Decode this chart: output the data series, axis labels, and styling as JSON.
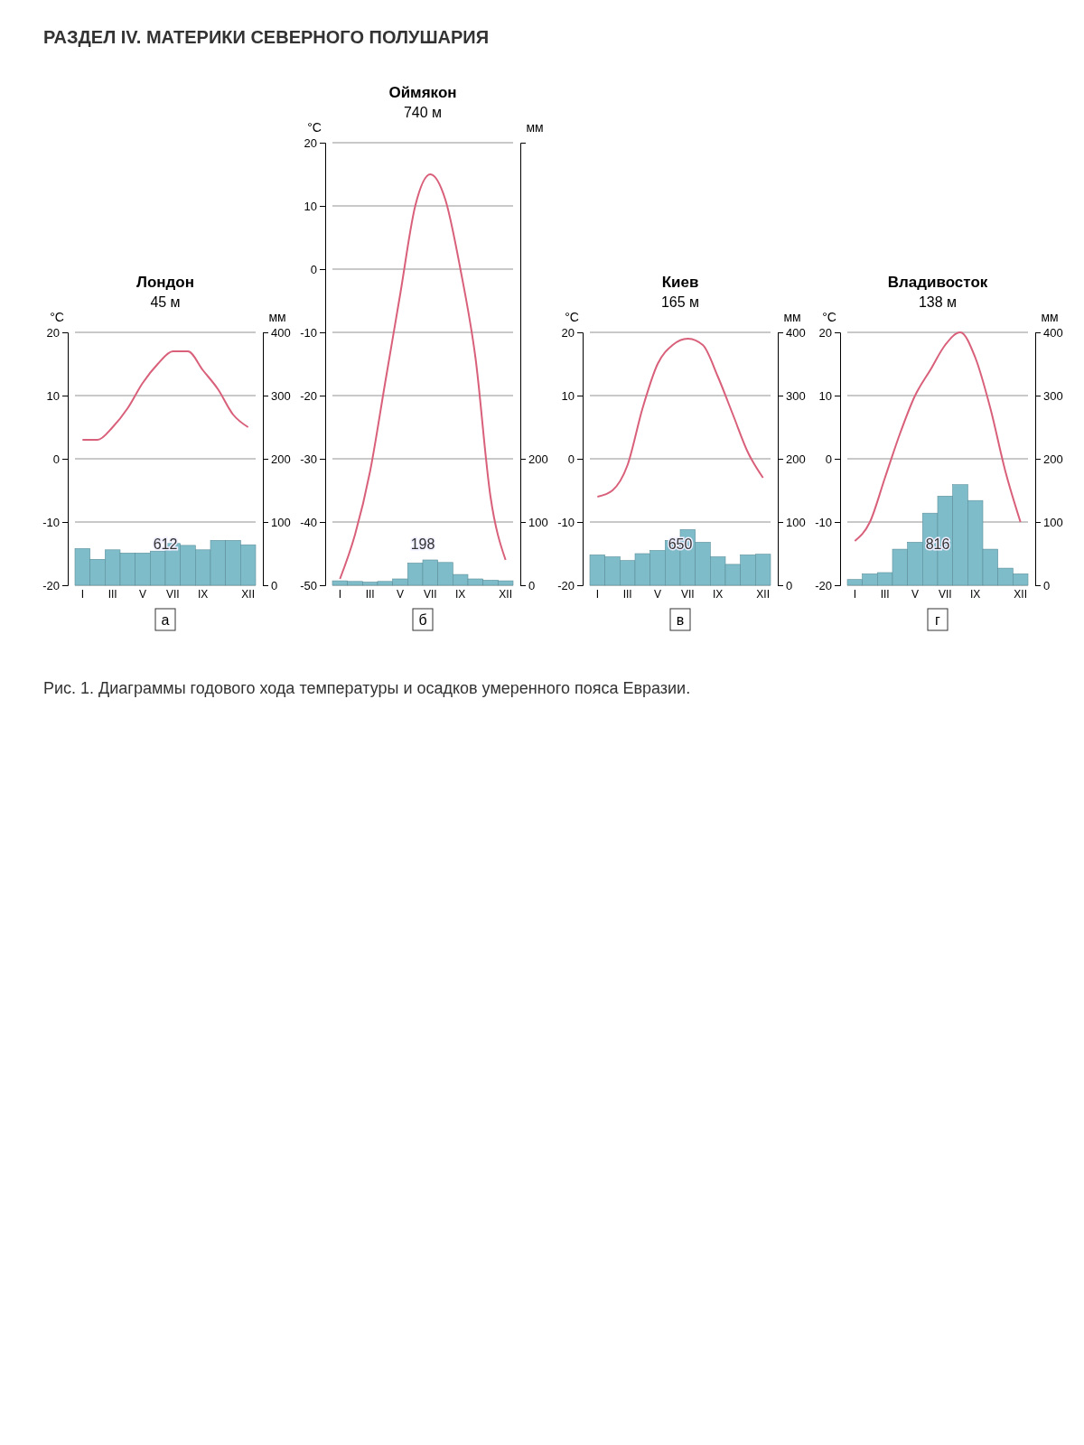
{
  "chart_data": [
    {
      "type": "bar",
      "title": "Лондон",
      "subtitle": "45 м",
      "ylabel": "°C",
      "y2label": "мм",
      "categories": [
        "I",
        null,
        "III",
        null,
        "V",
        null,
        "VII",
        null,
        "IX",
        null,
        null,
        "XII"
      ],
      "ylim": [
        -20,
        20
      ],
      "yticks": [
        -20,
        -10,
        0,
        10,
        20
      ],
      "y2lim": [
        0,
        400
      ],
      "y2ticks": [
        0,
        100,
        200,
        300,
        400
      ],
      "grid": "y",
      "annotations": [
        "612",
        "а",
        "РАЗДЕЛ IV. МАТЕРИКИ СЕВЕРНОГО ПОЛУШАРИЯ",
        "Рис. 1. Диаграммы годового хода температуры и осадков умеренного пояса Евразии."
      ],
      "series": [
        {
          "axis": "y2",
          "color": "#7fbcc9",
          "values": [
            58,
            41,
            56,
            51,
            51,
            54,
            66,
            63,
            56,
            71,
            71,
            64
          ]
        },
        {
          "type": "line",
          "axis": "y",
          "color": "#d9607a",
          "values": [
            3,
            3,
            5,
            8,
            12,
            15,
            17,
            17,
            14,
            11,
            7,
            5
          ]
        }
      ]
    },
    {
      "type": "bar",
      "title": "Оймякон",
      "subtitle": "740 м",
      "ylabel": "°C",
      "y2label": "мм",
      "categories": [
        "I",
        null,
        "III",
        null,
        "V",
        null,
        "VII",
        null,
        "IX",
        null,
        null,
        "XII"
      ],
      "ylim": [
        -50,
        20
      ],
      "yticks": [
        -50,
        -40,
        -30,
        -20,
        -10,
        0,
        10,
        20
      ],
      "y2lim": [
        0,
        700
      ],
      "y2ticks": [
        0,
        100,
        200
      ],
      "grid": "y",
      "annotations": [
        "198",
        "б"
      ],
      "series": [
        {
          "axis": "y2",
          "color": "#7fbcc9",
          "values": [
            7,
            6,
            5,
            6,
            10,
            35,
            40,
            36,
            17,
            10,
            8,
            7
          ]
        },
        {
          "type": "line",
          "axis": "y",
          "color": "#d9607a",
          "values": [
            -49,
            -42,
            -32,
            -18,
            -4,
            10,
            15,
            11,
            0,
            -14,
            -36,
            -46
          ]
        }
      ]
    },
    {
      "type": "bar",
      "title": "Киев",
      "subtitle": "165 м",
      "ylabel": "°C",
      "y2label": "мм",
      "categories": [
        "I",
        null,
        "III",
        null,
        "V",
        null,
        "VII",
        null,
        "IX",
        null,
        null,
        "XII"
      ],
      "ylim": [
        -20,
        20
      ],
      "yticks": [
        -20,
        -10,
        0,
        10,
        20
      ],
      "y2lim": [
        0,
        400
      ],
      "y2ticks": [
        0,
        100,
        200,
        300,
        400
      ],
      "grid": "y",
      "annotations": [
        "650",
        "в"
      ],
      "series": [
        {
          "axis": "y2",
          "color": "#7fbcc9",
          "values": [
            48,
            45,
            39,
            50,
            55,
            71,
            88,
            68,
            45,
            33,
            48,
            49
          ]
        },
        {
          "type": "line",
          "axis": "y",
          "color": "#d9607a",
          "values": [
            -6,
            -5,
            -1,
            8,
            15,
            18,
            19,
            18,
            13,
            7,
            1,
            -3
          ]
        }
      ]
    },
    {
      "type": "bar",
      "title": "Владивосток",
      "subtitle": "138 м",
      "ylabel": "°C",
      "y2label": "мм",
      "categories": [
        "I",
        null,
        "III",
        null,
        "V",
        null,
        "VII",
        null,
        "IX",
        null,
        null,
        "XII"
      ],
      "ylim": [
        -20,
        20
      ],
      "yticks": [
        -20,
        -10,
        0,
        10,
        20
      ],
      "y2lim": [
        0,
        400
      ],
      "y2ticks": [
        0,
        100,
        200,
        300,
        400
      ],
      "grid": "y",
      "annotations": [
        "816",
        "г"
      ],
      "series": [
        {
          "axis": "y2",
          "color": "#7fbcc9",
          "values": [
            9,
            18,
            20,
            57,
            68,
            114,
            141,
            159,
            134,
            57,
            27,
            18
          ]
        },
        {
          "type": "line",
          "axis": "y",
          "color": "#d9607a",
          "values": [
            -13,
            -10,
            -3,
            4,
            10,
            14,
            18,
            20,
            16,
            8,
            -2,
            -10
          ]
        }
      ]
    }
  ]
}
